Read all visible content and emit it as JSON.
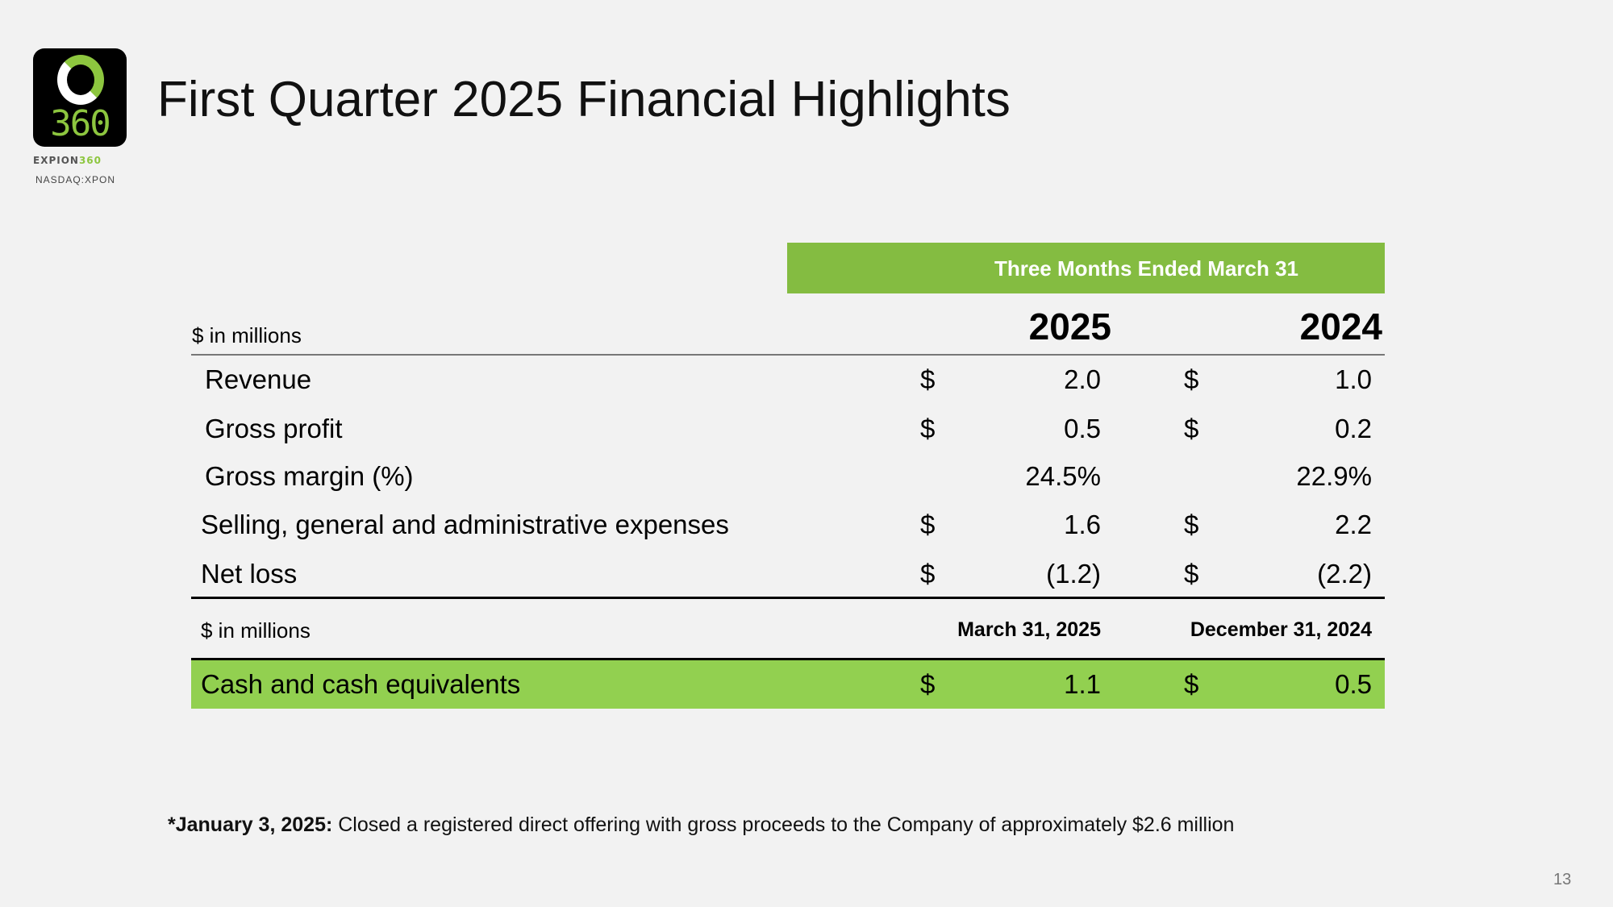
{
  "logo": {
    "text": "360",
    "brand_a": "EXPION",
    "brand_b": "360",
    "ticker": "NASDAQ:XPON"
  },
  "title": "First Quarter 2025 Financial Highlights",
  "table": {
    "period_header": "Three Months Ended March 31",
    "unit_label": "$ in millions",
    "years": [
      "2025",
      "2024"
    ],
    "rows": [
      {
        "label": "Revenue",
        "cur1": "$",
        "v1": "2.0",
        "cur2": "$",
        "v2": "1.0"
      },
      {
        "label": "Gross profit",
        "cur1": "$",
        "v1": "0.5",
        "cur2": "$",
        "v2": "0.2"
      },
      {
        "label": "Gross margin (%)",
        "cur1": "",
        "v1": "24.5%",
        "cur2": "",
        "v2": "22.9%"
      },
      {
        "label": "Selling, general and administrative expenses",
        "cur1": "$",
        "v1": "1.6",
        "cur2": "$",
        "v2": "2.2"
      },
      {
        "label": "Net loss",
        "cur1": "$",
        "v1": "(1.2)",
        "cur2": "$",
        "v2": "(2.2)"
      }
    ],
    "balance_unit_label": "$ in millions",
    "balance_dates": [
      "March 31, 2025",
      "December 31, 2024"
    ],
    "cash": {
      "label": "Cash and cash equivalents",
      "cur1": "$",
      "v1": "1.1",
      "cur2": "$",
      "v2": "0.5"
    }
  },
  "footnote": {
    "bold": "*January 3, 2025:",
    "text": " Closed a registered direct offering with gross proceeds to the Company of approximately $2.6 million"
  },
  "page_number": "13"
}
